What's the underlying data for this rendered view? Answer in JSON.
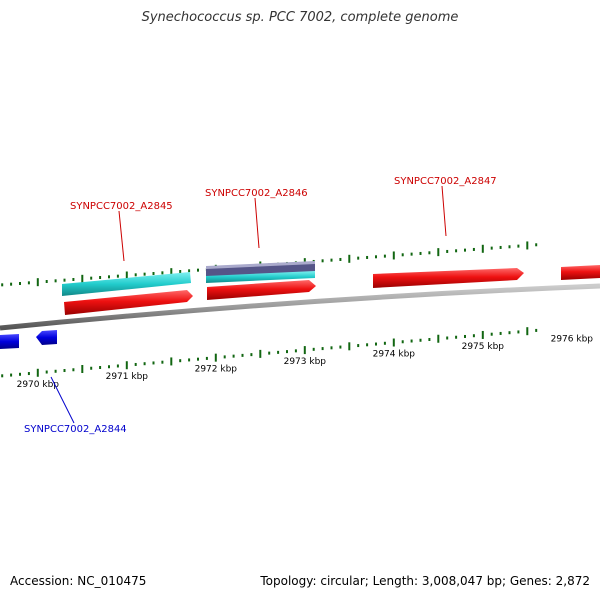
{
  "title": "Synechococcus sp. PCC 7002, complete genome",
  "footer": {
    "accession": "Accession: NC_010475",
    "summary": "Topology: circular; Length: 3,008,047 bp; Genes: 2,872"
  },
  "colors": {
    "forward_gene": "#ee1111",
    "reverse_gene": "#0000dd",
    "feature_cyan": "#22cccc",
    "feature_purple": "#555588",
    "tick": "#116611",
    "backbone": "#888888",
    "label_red": "#cc0000",
    "label_blue": "#0000cc"
  },
  "kbp_labels": [
    {
      "kbp": "2970 kbp",
      "pos": 2970.0
    },
    {
      "kbp": "2971 kbp",
      "pos": 2971.0
    },
    {
      "kbp": "2972 kbp",
      "pos": 2972.0
    },
    {
      "kbp": "2973 kbp",
      "pos": 2973.0
    },
    {
      "kbp": "2974 kbp",
      "pos": 2974.0
    },
    {
      "kbp": "2975 kbp",
      "pos": 2975.0
    },
    {
      "kbp": "2976 kbp",
      "pos": 2976.0
    }
  ],
  "genes": [
    {
      "name": "SYNPCC7002_A2844",
      "strand": "reverse",
      "start": 2969.75,
      "end": 2970.05
    },
    {
      "name": "SYNPCC7002_A2845",
      "strand": "forward",
      "start": 2970.35,
      "end": 2971.8
    },
    {
      "name": "SYNPCC7002_A2846",
      "strand": "forward",
      "start": 2971.85,
      "end": 2973.1
    },
    {
      "name": "SYNPCC7002_A2847",
      "strand": "forward",
      "start": 2973.75,
      "end": 2975.4
    },
    {
      "name": "",
      "strand": "forward",
      "start": 2975.85,
      "end": 2976.5
    }
  ]
}
